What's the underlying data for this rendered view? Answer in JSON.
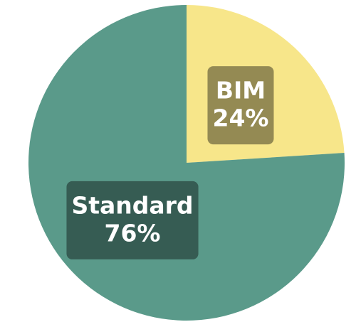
{
  "chart_data": {
    "type": "pie",
    "categories": [
      "BIM",
      "Standard"
    ],
    "values": [
      24,
      76
    ],
    "value_labels": [
      "24%",
      "76%"
    ],
    "colors": [
      "#f7e68a",
      "#5a9a8a"
    ]
  }
}
